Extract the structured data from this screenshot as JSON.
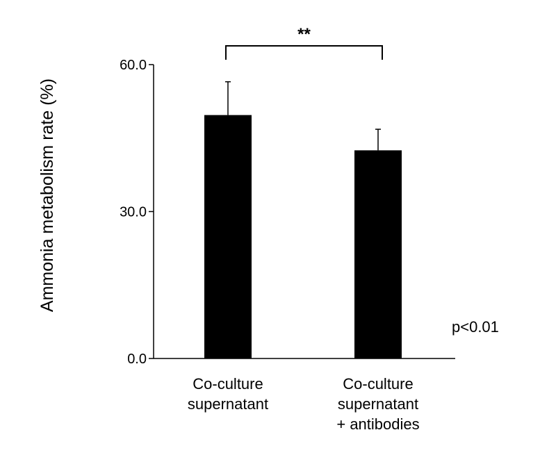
{
  "chart_data": {
    "type": "bar",
    "title": "",
    "xlabel": "",
    "ylabel": "Ammonia metabolism rate (%)",
    "ylim": [
      0,
      60
    ],
    "yticks": [
      "0.0",
      "30.0",
      "60.0"
    ],
    "ytick_values": [
      0,
      30,
      60
    ],
    "categories": [
      [
        "Co-culture",
        "supernatant"
      ],
      [
        "Co-culture",
        "supernatant",
        "+ antibodies"
      ]
    ],
    "values": [
      49.7,
      42.5
    ],
    "error_upper": [
      6.8,
      4.3
    ],
    "bar_color": "#000000",
    "grid": false,
    "significance": {
      "between": [
        0,
        1
      ],
      "label": "**"
    },
    "annotation": "p<0.01"
  }
}
